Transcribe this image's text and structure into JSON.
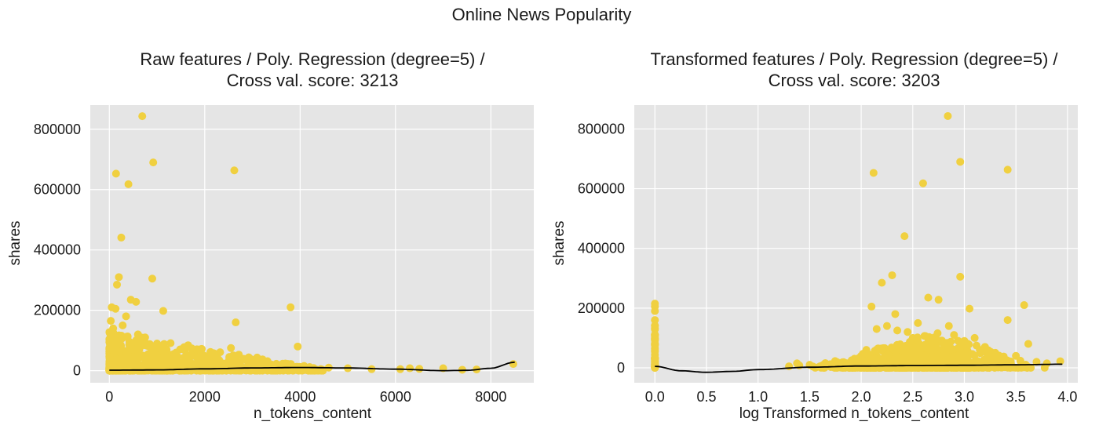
{
  "figure": {
    "suptitle": "Online News Popularity",
    "colors": {
      "point": "#f0d040",
      "fit": "#000000",
      "panel": "#e5e5e5",
      "grid": "#ffffff"
    }
  },
  "chart_data": [
    {
      "type": "scatter",
      "title": "Raw features / Poly. Regression (degree=5) /\nCross val. score: 3213",
      "title_lines": [
        "Raw features / Poly. Regression (degree=5) /",
        "Cross val. score: 3213"
      ],
      "xlabel": "n_tokens_content",
      "ylabel": "shares",
      "xlim": [
        -400,
        8900
      ],
      "ylim": [
        -40000,
        880000
      ],
      "xticks": [
        0,
        2000,
        4000,
        6000,
        8000
      ],
      "yticks": [
        0,
        200000,
        400000,
        600000,
        800000
      ],
      "grid": true,
      "series": [
        {
          "marker": "circle",
          "points": [
            [
              690,
              843300
            ],
            [
              920,
              690000
            ],
            [
              140,
              652900
            ],
            [
              400,
              617900
            ],
            [
              2620,
              663600
            ],
            [
              250,
              441000
            ],
            [
              200,
              310000
            ],
            [
              900,
              305000
            ],
            [
              160,
              285000
            ],
            [
              3800,
              210000
            ],
            [
              50,
              210000
            ],
            [
              130,
              205000
            ],
            [
              450,
              235000
            ],
            [
              560,
              228000
            ],
            [
              1130,
              198000
            ],
            [
              2650,
              160000
            ],
            [
              30,
              165000
            ],
            [
              80,
              140000
            ],
            [
              350,
              180000
            ],
            [
              280,
              150000
            ],
            [
              600,
              120000
            ],
            [
              750,
              110000
            ],
            [
              1000,
              90000
            ],
            [
              1200,
              70000
            ],
            [
              1400,
              60000
            ],
            [
              1700,
              50000
            ],
            [
              2000,
              40000
            ],
            [
              2300,
              35000
            ],
            [
              2550,
              75000
            ],
            [
              2900,
              30000
            ],
            [
              3100,
              25000
            ],
            [
              3400,
              20000
            ],
            [
              3700,
              15000
            ],
            [
              3950,
              80000
            ],
            [
              4200,
              12000
            ],
            [
              4600,
              10000
            ],
            [
              5000,
              8000
            ],
            [
              5500,
              5000
            ],
            [
              6100,
              5000
            ],
            [
              6300,
              8000
            ],
            [
              6500,
              6000
            ],
            [
              7000,
              8000
            ],
            [
              7400,
              3000
            ],
            [
              7700,
              4000
            ],
            [
              8470,
              22000
            ],
            [
              100,
              60000
            ],
            [
              200,
              90000
            ],
            [
              300,
              40000
            ],
            [
              500,
              70000
            ],
            [
              700,
              50000
            ],
            [
              800,
              30000
            ],
            [
              1500,
              25000
            ],
            [
              1800,
              20000
            ],
            [
              2200,
              15000
            ],
            [
              2700,
              12000
            ],
            [
              3300,
              10000
            ],
            [
              50,
              20000
            ],
            [
              150,
              30000
            ],
            [
              250,
              10000
            ],
            [
              650,
              15000
            ]
          ],
          "density": {
            "x_max": 4500,
            "y_peak": 130000,
            "count": 900
          }
        }
      ],
      "fit_line": {
        "x": [
          0,
          500,
          1000,
          2000,
          3000,
          4000,
          5000,
          6000,
          7000,
          7500,
          8000,
          8500
        ],
        "y": [
          1500,
          2000,
          2500,
          6000,
          9000,
          10500,
          9000,
          5000,
          0,
          1000,
          8000,
          28000
        ]
      }
    },
    {
      "type": "scatter",
      "title": "Transformed features  / Poly. Regression (degree=5) /\nCross val. score: 3203",
      "title_lines": [
        "Transformed features  / Poly. Regression (degree=5) /",
        "Cross val. score: 3203"
      ],
      "xlabel": "log Transformed  n_tokens_content",
      "ylabel": "shares",
      "xlim": [
        -0.2,
        4.1
      ],
      "ylim": [
        -50000,
        880000
      ],
      "xticks": [
        0.0,
        0.5,
        1.0,
        1.5,
        2.0,
        2.5,
        3.0,
        3.5,
        4.0
      ],
      "xtick_labels": [
        "0.0",
        "0.5",
        "1.0",
        "1.5",
        "2.0",
        "2.5",
        "3.0",
        "3.5",
        "4.0"
      ],
      "yticks": [
        0,
        200000,
        400000,
        600000,
        800000
      ],
      "grid": true,
      "series": [
        {
          "marker": "circle",
          "points": [
            [
              2.84,
              843300
            ],
            [
              2.96,
              690000
            ],
            [
              2.12,
              652900
            ],
            [
              2.6,
              617900
            ],
            [
              3.42,
              663600
            ],
            [
              2.42,
              441000
            ],
            [
              2.3,
              310000
            ],
            [
              2.96,
              305000
            ],
            [
              2.2,
              285000
            ],
            [
              3.58,
              210000
            ],
            [
              2.1,
              205000
            ],
            [
              2.65,
              235000
            ],
            [
              2.75,
              228000
            ],
            [
              3.05,
              198000
            ],
            [
              3.42,
              160000
            ],
            [
              2.33,
              180000
            ],
            [
              2.55,
              150000
            ],
            [
              2.45,
              120000
            ],
            [
              2.9,
              110000
            ],
            [
              3.62,
              80000
            ],
            [
              3.0,
              90000
            ],
            [
              3.2,
              70000
            ],
            [
              3.3,
              50000
            ],
            [
              3.5,
              40000
            ],
            [
              3.7,
              20000
            ],
            [
              3.8,
              15000
            ],
            [
              3.93,
              22000
            ],
            [
              1.3,
              5000
            ],
            [
              1.4,
              8000
            ],
            [
              1.5,
              10000
            ],
            [
              1.6,
              5000
            ],
            [
              1.7,
              12000
            ],
            [
              1.8,
              15000
            ],
            [
              1.9,
              20000
            ],
            [
              2.0,
              40000
            ],
            [
              2.05,
              60000
            ],
            [
              2.15,
              130000
            ],
            [
              2.25,
              140000
            ],
            [
              2.35,
              125000
            ],
            [
              2.5,
              100000
            ],
            [
              2.7,
              90000
            ],
            [
              2.8,
              80000
            ],
            [
              2.85,
              140000
            ],
            [
              3.1,
              100000
            ],
            [
              3.15,
              60000
            ],
            [
              0.0,
              0
            ],
            [
              0.0,
              30000
            ],
            [
              0.0,
              60000
            ],
            [
              0.0,
              100000
            ],
            [
              0.0,
              160000
            ],
            [
              0.0,
              190000
            ],
            [
              0.0,
              205000
            ],
            [
              0.0,
              215000
            ],
            [
              0.0,
              10000
            ],
            [
              0.0,
              80000
            ]
          ],
          "density": {
            "x_min": 1.3,
            "x_max": 3.9,
            "x_mode": 2.7,
            "y_peak": 120000,
            "count": 900
          }
        }
      ],
      "fit_line": {
        "x": [
          0.0,
          0.25,
          0.5,
          0.75,
          1.0,
          1.5,
          2.0,
          2.5,
          3.0,
          3.5,
          3.95
        ],
        "y": [
          5000,
          -10000,
          -15000,
          -12000,
          -6000,
          2000,
          6000,
          7500,
          8500,
          10000,
          12000
        ]
      }
    }
  ]
}
